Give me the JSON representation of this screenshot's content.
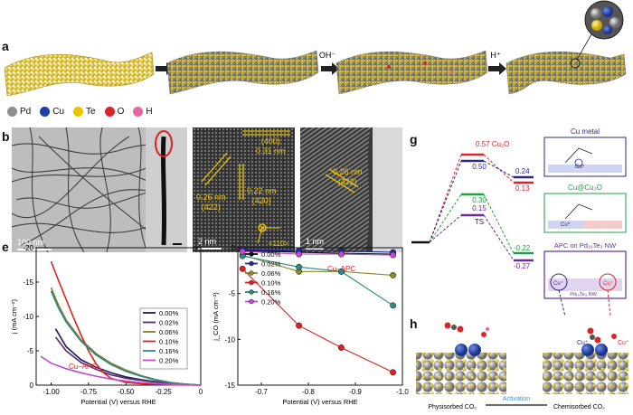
{
  "panel_labels": {
    "a": "a",
    "b": "b",
    "c": "c",
    "d": "d",
    "e": "e",
    "f": "f",
    "g": "g",
    "h": "h"
  },
  "panel_a": {
    "arrow1": "OH⁻",
    "arrow2": "H⁺",
    "legend": [
      {
        "symbol": "Pd",
        "color": "#8e8e8e"
      },
      {
        "symbol": "Cu",
        "color": "#1c3fa8"
      },
      {
        "symbol": "Te",
        "color": "#e9c500"
      },
      {
        "symbol": "O",
        "color": "#d8262b"
      },
      {
        "symbol": "H",
        "color": "#e7669e"
      }
    ]
  },
  "panel_b": {
    "scalebar": "100 nm"
  },
  "panel_c": {
    "lattice_top": "(400)",
    "d_top": "0.31 nm",
    "d_left": "0.26 nm",
    "hkl_left": "(422)",
    "d_right": "0.22 nm",
    "hkl_right": "(420)",
    "zone_axis": "<110>",
    "scalebar": "2 nm"
  },
  "panel_d": {
    "d": "0.26 nm",
    "hkl": "(422)",
    "scalebar": "1 nm"
  },
  "chart_data": [
    {
      "id": "e",
      "type": "line",
      "xlabel": "Potential (V) versus RHE",
      "ylabel": "j (mA cm⁻²)",
      "xlim": [
        -1.1,
        0
      ],
      "ylim": [
        -20,
        0
      ],
      "xticks": [
        "-1.00",
        "-0.75",
        "-0.50",
        "-0.25",
        "0"
      ],
      "yticks": [
        "0",
        "-5",
        "-10",
        "-15",
        "-20"
      ],
      "annotation": "Cu–APC",
      "legend": "bottom-right",
      "series": [
        {
          "name": "0.00%",
          "color": "#1a1a5a",
          "x": [
            -0.97,
            -0.9,
            -0.8,
            -0.7,
            -0.6,
            -0.5,
            -0.4,
            -0.3,
            -0.2,
            -0.1,
            0
          ],
          "y": [
            -8.2,
            -5.6,
            -3.7,
            -2.6,
            -1.8,
            -1.2,
            -0.8,
            -0.5,
            -0.3,
            -0.15,
            0
          ]
        },
        {
          "name": "0.02%",
          "color": "#5a2c6e",
          "x": [
            -0.97,
            -0.9,
            -0.8,
            -0.7,
            -0.6,
            -0.5,
            -0.4,
            -0.3,
            -0.2,
            -0.1,
            0
          ],
          "y": [
            -7.0,
            -5.0,
            -3.3,
            -2.3,
            -1.5,
            -1.0,
            -0.7,
            -0.45,
            -0.25,
            -0.1,
            0
          ]
        },
        {
          "name": "0.06%",
          "color": "#8a7d2a",
          "x": [
            -1.0,
            -0.95,
            -0.9,
            -0.8,
            -0.7,
            -0.6,
            -0.5,
            -0.4,
            -0.3,
            -0.2,
            -0.1,
            0
          ],
          "y": [
            -14.2,
            -11.6,
            -9.5,
            -6.6,
            -4.6,
            -3.2,
            -2.2,
            -1.4,
            -0.8,
            -0.4,
            -0.15,
            0
          ]
        },
        {
          "name": "0.10%",
          "color": "#e02020",
          "x": [
            -1.0,
            -0.95,
            -0.9,
            -0.85,
            -0.8,
            -0.75,
            -0.7,
            -0.65,
            -0.6,
            -0.5,
            -0.4,
            -0.3,
            -0.2,
            -0.1,
            0
          ],
          "y": [
            -18.0,
            -15.2,
            -12.5,
            -9.8,
            -7.3,
            -5.0,
            -3.1,
            -1.8,
            -1.0,
            -0.4,
            -0.2,
            -0.1,
            -0.05,
            -0.02,
            0
          ]
        },
        {
          "name": "0.16%",
          "color": "#2a8a86",
          "x": [
            -1.0,
            -0.95,
            -0.9,
            -0.8,
            -0.7,
            -0.6,
            -0.5,
            -0.4,
            -0.3,
            -0.2,
            -0.1,
            0
          ],
          "y": [
            -13.7,
            -11.2,
            -9.2,
            -6.4,
            -4.4,
            -3.0,
            -2.0,
            -1.3,
            -0.75,
            -0.35,
            -0.12,
            0
          ]
        },
        {
          "name": "0.20%",
          "color": "#c04bd0",
          "x": [
            -1.07,
            -1.0,
            -0.9,
            -0.8,
            -0.7,
            -0.6,
            -0.5,
            -0.4,
            -0.3,
            -0.2,
            -0.1,
            0
          ],
          "y": [
            -4.2,
            -3.2,
            -2.4,
            -1.8,
            -1.3,
            -0.9,
            -0.6,
            -0.4,
            -0.25,
            -0.12,
            -0.05,
            0
          ]
        }
      ]
    },
    {
      "id": "f",
      "type": "line",
      "xlabel": "Potential (V) versus RHE",
      "ylabel": "j_CO (mA cm⁻²)",
      "xlim": [
        -0.65,
        -1.0
      ],
      "ylim": [
        0,
        -15
      ],
      "xticks": [
        "-0.7",
        "-0.8",
        "-0.9",
        "-1.0"
      ],
      "yticks": [
        "0",
        "-5",
        "-10",
        "-15"
      ],
      "annotation": "Cu–APC",
      "legend": "top-left",
      "series": [
        {
          "name": "0.00%",
          "color": "#111111",
          "x": [
            -0.66,
            -0.78,
            -0.87,
            -0.98
          ],
          "y": [
            -0.3,
            -0.5,
            -0.6,
            -0.7
          ]
        },
        {
          "name": "0.02%",
          "color": "#1f2ca0",
          "x": [
            -0.66,
            -0.78,
            -0.87,
            -0.98
          ],
          "y": [
            -0.2,
            -0.3,
            -0.35,
            -0.5
          ]
        },
        {
          "name": "0.06%",
          "color": "#8a8a2a",
          "x": [
            -0.66,
            -0.78,
            -0.87,
            -0.98
          ],
          "y": [
            -0.8,
            -2.6,
            -2.6,
            -3.0
          ]
        },
        {
          "name": "0.10%",
          "color": "#e02020",
          "x": [
            -0.66,
            -0.78,
            -0.87,
            -0.98
          ],
          "y": [
            -2.3,
            -8.5,
            -10.9,
            -13.6
          ]
        },
        {
          "name": "0.16%",
          "color": "#2a8a86",
          "x": [
            -0.66,
            -0.78,
            -0.87,
            -0.98
          ],
          "y": [
            -0.9,
            -2.1,
            -2.6,
            -6.3
          ]
        },
        {
          "name": "0.20%",
          "color": "#c04bd0",
          "x": [
            -0.66,
            -0.78,
            -0.87,
            -0.98
          ],
          "y": [
            -0.4,
            -0.7,
            -0.7,
            -0.8
          ]
        }
      ]
    }
  ],
  "panel_g": {
    "levels": [
      {
        "label": "Cu₂O",
        "value": "0.57",
        "color": "#d8262b"
      },
      {
        "label": "",
        "value": "0.50",
        "color": "#2a2a8a"
      },
      {
        "label": "",
        "value": "0.30",
        "color": "#20a040"
      },
      {
        "label": "TS",
        "value": "0.15",
        "color": "#6a2a9a"
      }
    ],
    "final": [
      {
        "value": "0.24",
        "color": "#2a2a8a"
      },
      {
        "value": "0.13",
        "color": "#d8262b"
      },
      {
        "value": "-0.22",
        "color": "#20a040"
      },
      {
        "value": "-0.27",
        "color": "#6a2a9a"
      }
    ],
    "boxes": [
      {
        "title": "Cu metal",
        "color": "#2a2a8a",
        "ion": "Cu⁰"
      },
      {
        "title": "Cu@Cu₂O",
        "color": "#20a040",
        "ion": "Cu⁰"
      },
      {
        "title": "APC on Pd₁₀Te₃ NW",
        "color": "#6a2a9a",
        "ion1": "Cu⁺",
        "ion2": "Cu⁺",
        "inner": "Pd₁₀Te₃ NW"
      }
    ]
  },
  "panel_h": {
    "left_label": "Physisorbed CO₂",
    "right_label": "Chemisorbed CO₂",
    "arrow_label": "Activation",
    "ion_left": "Cu⁺",
    "ion_right": "Cu⁺"
  }
}
